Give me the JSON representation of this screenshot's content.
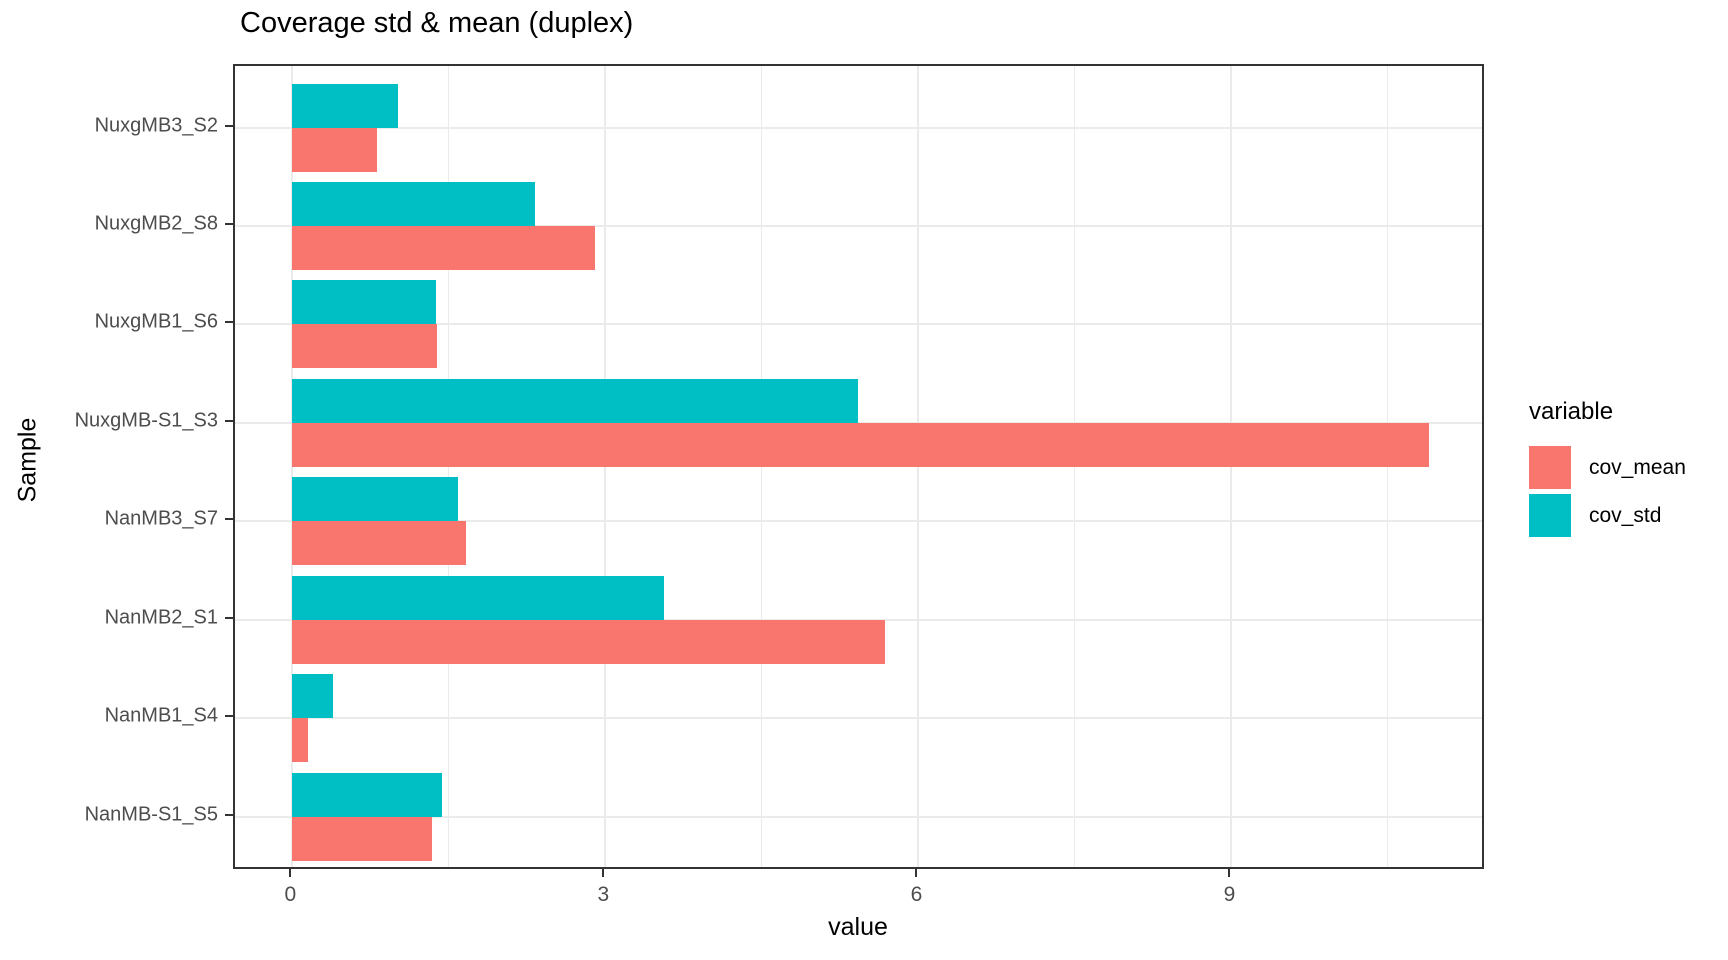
{
  "title": "Coverage std & mean (duplex)",
  "x_axis": {
    "label": "value",
    "ticks": [
      "0",
      "3",
      "6",
      "9"
    ]
  },
  "y_axis": {
    "label": "Sample"
  },
  "legend": {
    "title": "variable",
    "items": [
      {
        "label": "cov_mean",
        "color": "#F8766D"
      },
      {
        "label": "cov_std",
        "color": "#00BFC4"
      }
    ]
  },
  "chart_data": {
    "type": "bar",
    "orientation": "horizontal",
    "title": "Coverage std & mean (duplex)",
    "xlabel": "value",
    "ylabel": "Sample",
    "grid": true,
    "legend_position": "right",
    "categories": [
      "NuxgMB3_S2",
      "NuxgMB2_S8",
      "NuxgMB1_S6",
      "NuxgMB-S1_S3",
      "NanMB3_S7",
      "NanMB2_S1",
      "NanMB1_S4",
      "NanMB-S1_S5"
    ],
    "series": [
      {
        "name": "cov_mean",
        "color": "#F8766D",
        "values": [
          0.81,
          2.9,
          1.39,
          10.89,
          1.66,
          5.68,
          0.15,
          1.34
        ]
      },
      {
        "name": "cov_std",
        "color": "#00BFC4",
        "values": [
          1.01,
          2.33,
          1.38,
          5.42,
          1.59,
          3.56,
          0.39,
          1.43
        ]
      }
    ],
    "x_major_ticks": [
      0,
      3,
      6,
      9
    ],
    "x_minor_ticks": [
      1.5,
      4.5,
      7.5,
      10.5
    ],
    "xlim": [
      -0.55,
      11.44
    ]
  }
}
